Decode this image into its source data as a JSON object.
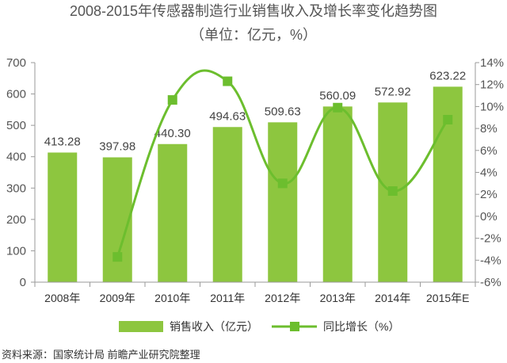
{
  "title_line1": "2008-2015年传感器制造行业销售收入及增长率变化趋势图",
  "title_line2": "（单位：亿元，%）",
  "source": "资料来源：国家统计局 前瞻产业研究院整理",
  "colors": {
    "bar": "#8dc63f",
    "line": "#6cbe2e",
    "axis": "#9a9a9a"
  },
  "chart_data": {
    "type": "bar",
    "categories": [
      "2008年",
      "2009年",
      "2010年",
      "2011年",
      "2012年",
      "2013年",
      "2014年",
      "2015年E"
    ],
    "series": [
      {
        "name": "销售收入（亿元）",
        "type": "bar",
        "axis": "left",
        "values": [
          413.28,
          397.98,
          440.3,
          494.63,
          509.63,
          560.09,
          572.92,
          623.22
        ],
        "labels": [
          "413.28",
          "397.98",
          "440.30",
          "494.63",
          "509.63",
          "560.09",
          "572.92",
          "623.22"
        ]
      },
      {
        "name": "同比增长（%）",
        "type": "line",
        "axis": "right",
        "values": [
          null,
          -3.7,
          10.6,
          12.3,
          3.0,
          9.9,
          2.3,
          8.8
        ]
      }
    ],
    "y_left": {
      "min": 0,
      "max": 700,
      "ticks": [
        "0",
        "100",
        "200",
        "300",
        "400",
        "500",
        "600",
        "700"
      ]
    },
    "y_right": {
      "min": -6,
      "max": 14,
      "ticks": [
        "-6%",
        "-4%",
        "-2%",
        "0%",
        "2%",
        "4%",
        "6%",
        "8%",
        "10%",
        "12%",
        "14%"
      ]
    },
    "grid": false,
    "legend_position": "bottom"
  }
}
